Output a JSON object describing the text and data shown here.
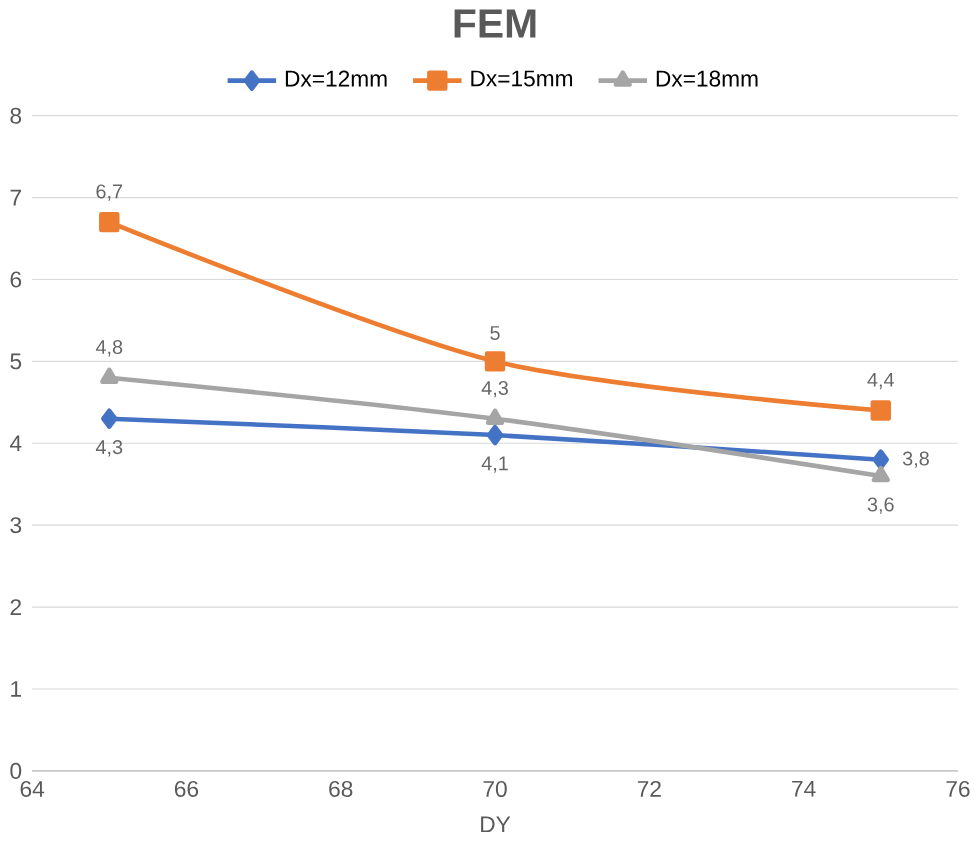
{
  "chart_data": {
    "type": "line",
    "title": "FEM",
    "xlabel": "DY",
    "x": [
      65,
      70,
      75
    ],
    "series": [
      {
        "name": "Dx=12mm",
        "color": "#4472c4",
        "values": [
          4.3,
          4.1,
          3.8
        ],
        "marker": "diamond",
        "value_labels": [
          "4,3",
          "4,1",
          "3,8"
        ]
      },
      {
        "name": "Dx=15mm",
        "color": "#ed7d31",
        "values": [
          6.7,
          5,
          4.4
        ],
        "marker": "square",
        "value_labels": [
          "6,7",
          "5",
          "4,4"
        ]
      },
      {
        "name": "Dx=18mm",
        "color": "#a5a5a5",
        "values": [
          4.8,
          4.3,
          3.6
        ],
        "marker": "triangle",
        "value_labels": [
          "4,8",
          "4,3",
          "3,6"
        ]
      }
    ],
    "xlim": [
      64,
      76
    ],
    "xticks": [
      64,
      66,
      68,
      70,
      72,
      74,
      76
    ],
    "ylim": [
      0,
      8
    ],
    "yticks": [
      0,
      1,
      2,
      3,
      4,
      5,
      6,
      7,
      8
    ],
    "grid": "y",
    "legend": "top",
    "line_style": "solid"
  }
}
